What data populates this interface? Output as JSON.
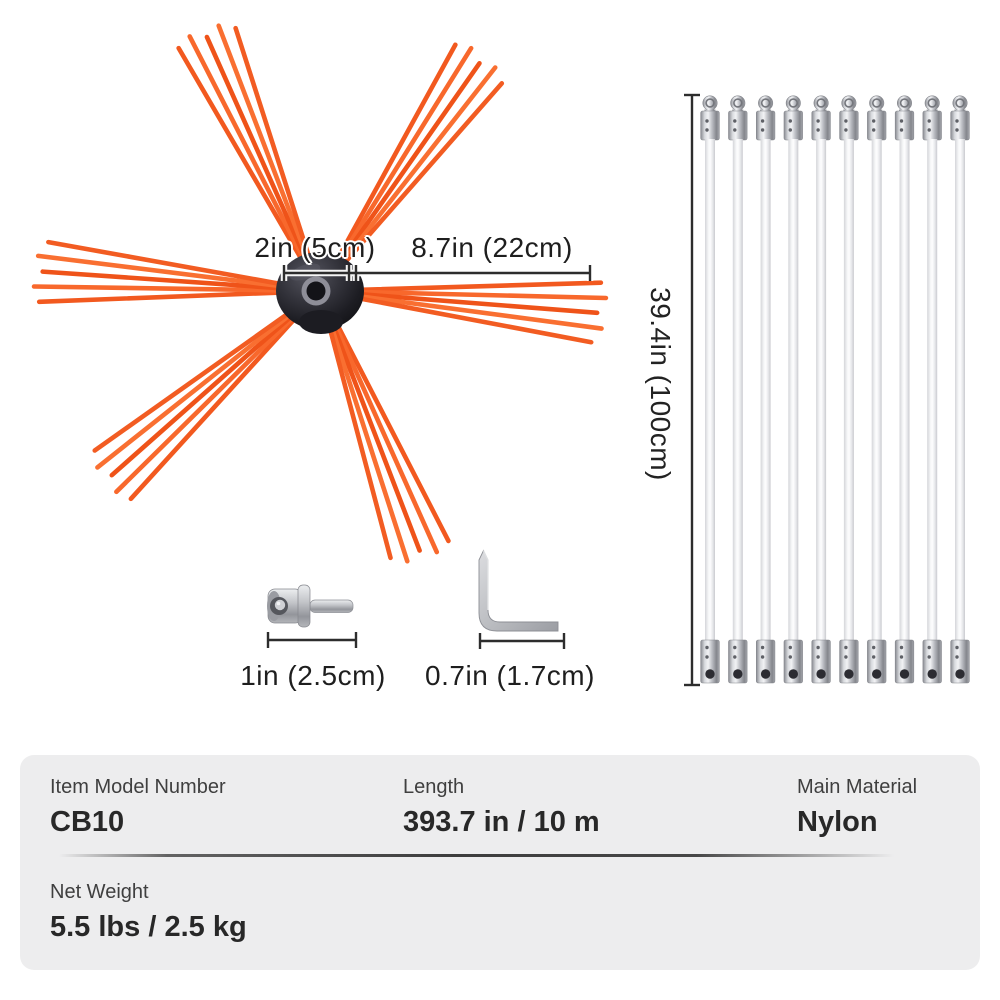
{
  "brush": {
    "width_label": "2in (5cm)",
    "bristle_length_label": "8.7in (22cm)",
    "cluster_count": 6,
    "strands_per_cluster": 5,
    "bristle_color": "#f2591f",
    "hub_color": "#23232a"
  },
  "rods": {
    "count": 10,
    "length_label": "39.4in (100cm)",
    "metal_color": "#b9bbc1",
    "rod_color": "#f2f3f5"
  },
  "adapter": {
    "length_label": "1in (2.5cm)"
  },
  "hex_key": {
    "length_label": "0.7in (1.7cm)"
  },
  "spec_panel": {
    "background": "#ededee",
    "rows": [
      {
        "cells": [
          {
            "label": "Item Model Number",
            "value": "CB10"
          },
          {
            "label": "Length",
            "value": "393.7 in / 10 m"
          },
          {
            "label": "Main Material",
            "value": "Nylon"
          }
        ]
      },
      {
        "cells": [
          {
            "label": "Net Weight",
            "value": "5.5 lbs / 2.5 kg"
          }
        ]
      }
    ]
  }
}
